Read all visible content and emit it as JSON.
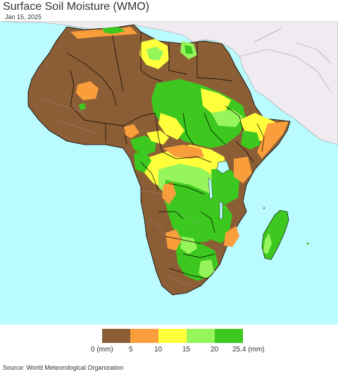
{
  "header": {
    "title": "Surface Soil Moisture (WMO)",
    "date": "Jan 15, 2025"
  },
  "map": {
    "region": "Africa",
    "colors": {
      "ocean": "#b9fbff",
      "other_land": "#efebf0",
      "borders": "#000000",
      "admin_lines": "#9a9a9a",
      "class_0_5": "#8c5e35",
      "class_5_10": "#fa9e3c",
      "class_10_15": "#ffff3c",
      "class_15_20": "#96f55a",
      "class_20_25_4": "#3cc81e"
    }
  },
  "legend": {
    "colors": [
      "#8c5e35",
      "#fa9e3c",
      "#ffff3c",
      "#96f55a",
      "#3cc81e"
    ],
    "labels": [
      "0 (mm)",
      "5",
      "10",
      "15",
      "20",
      "25.4 (mm)"
    ]
  },
  "footer": {
    "source": "Source: World Meteorological Organization"
  }
}
